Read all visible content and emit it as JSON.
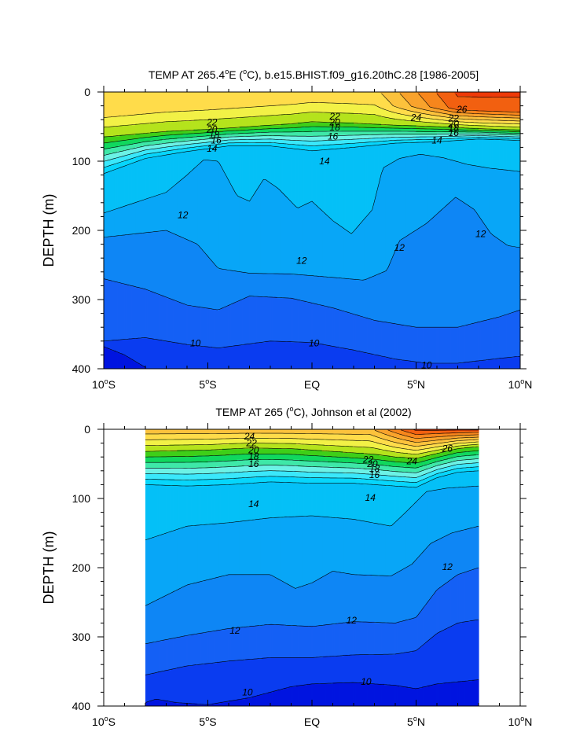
{
  "chart_data": [
    {
      "type": "contour",
      "title": "TEMP AT 265.4°E (°C), b.e15.BHIST.f09_g16.20thC.28 [1986-2005]",
      "title_main": "TEMP AT 265.4",
      "title_sup": "o",
      "title_rest": "E (",
      "title_sup2": "o",
      "title_end": "C), b.e15.BHIST.f09_g16.20thC.28 [1986-2005]",
      "ylabel": "DEPTH (m)",
      "xlim": [
        -10,
        10
      ],
      "ylim": [
        0,
        400
      ],
      "y_inverted": true,
      "data_xrange": [
        -10,
        10
      ],
      "x_ticks": [
        {
          "value": -10,
          "num": "10",
          "sup": "o",
          "hemi": "S"
        },
        {
          "value": -5,
          "num": "5",
          "sup": "o",
          "hemi": "S"
        },
        {
          "value": 0,
          "num": "EQ",
          "sup": "",
          "hemi": ""
        },
        {
          "value": 5,
          "num": "5",
          "sup": "o",
          "hemi": "N"
        },
        {
          "value": 10,
          "num": "10",
          "sup": "o",
          "hemi": "N"
        }
      ],
      "y_ticks": [
        0,
        100,
        200,
        300,
        400
      ],
      "contour_labels": [
        {
          "text": "22",
          "x": -4.8,
          "y": 44
        },
        {
          "text": "20",
          "x": -4.8,
          "y": 54
        },
        {
          "text": "18",
          "x": -4.7,
          "y": 62
        },
        {
          "text": "16",
          "x": -4.6,
          "y": 70
        },
        {
          "text": "14",
          "x": -4.8,
          "y": 82
        },
        {
          "text": "22",
          "x": 1.1,
          "y": 35
        },
        {
          "text": "20",
          "x": 1.1,
          "y": 44
        },
        {
          "text": "18",
          "x": 1.1,
          "y": 51
        },
        {
          "text": "16",
          "x": 1.0,
          "y": 64
        },
        {
          "text": "14",
          "x": 0.6,
          "y": 100
        },
        {
          "text": "24",
          "x": 5.0,
          "y": 37
        },
        {
          "text": "26",
          "x": 7.2,
          "y": 25
        },
        {
          "text": "22",
          "x": 6.8,
          "y": 38
        },
        {
          "text": "20",
          "x": 6.8,
          "y": 46
        },
        {
          "text": "18",
          "x": 6.8,
          "y": 52
        },
        {
          "text": "16",
          "x": 6.8,
          "y": 59
        },
        {
          "text": "14",
          "x": 6.0,
          "y": 70
        },
        {
          "text": "12",
          "x": -6.2,
          "y": 178
        },
        {
          "text": "12",
          "x": -0.5,
          "y": 244
        },
        {
          "text": "12",
          "x": 4.2,
          "y": 225
        },
        {
          "text": "12",
          "x": 8.1,
          "y": 205
        },
        {
          "text": "10",
          "x": -5.6,
          "y": 363
        },
        {
          "text": "10",
          "x": 0.1,
          "y": 363
        },
        {
          "text": "10",
          "x": 5.5,
          "y": 395
        }
      ]
    },
    {
      "type": "contour",
      "title": "TEMP AT 265 (°C), Johnson et al (2002)",
      "title_main": "TEMP AT 265 (",
      "title_sup": "o",
      "title_end": "C), Johnson et al (2002)",
      "ylabel": "DEPTH (m)",
      "xlim": [
        -10,
        10
      ],
      "ylim": [
        0,
        400
      ],
      "y_inverted": true,
      "data_xrange": [
        -8,
        8
      ],
      "x_ticks": [
        {
          "value": -10,
          "num": "10",
          "sup": "o",
          "hemi": "S"
        },
        {
          "value": -5,
          "num": "5",
          "sup": "o",
          "hemi": "S"
        },
        {
          "value": 0,
          "num": "EQ",
          "sup": "",
          "hemi": ""
        },
        {
          "value": 5,
          "num": "5",
          "sup": "o",
          "hemi": "N"
        },
        {
          "value": 10,
          "num": "10",
          "sup": "o",
          "hemi": "N"
        }
      ],
      "y_ticks": [
        0,
        100,
        200,
        300,
        400
      ],
      "contour_labels": [
        {
          "text": "24",
          "x": -3.0,
          "y": 10
        },
        {
          "text": "22",
          "x": -2.9,
          "y": 20
        },
        {
          "text": "20",
          "x": -2.8,
          "y": 30
        },
        {
          "text": "18",
          "x": -2.8,
          "y": 39
        },
        {
          "text": "16",
          "x": -2.8,
          "y": 50
        },
        {
          "text": "14",
          "x": -2.8,
          "y": 108
        },
        {
          "text": "22",
          "x": 2.7,
          "y": 44
        },
        {
          "text": "20",
          "x": 2.9,
          "y": 50
        },
        {
          "text": "18",
          "x": 3.0,
          "y": 57
        },
        {
          "text": "16",
          "x": 3.0,
          "y": 66
        },
        {
          "text": "24",
          "x": 4.8,
          "y": 46
        },
        {
          "text": "26",
          "x": 6.5,
          "y": 28
        },
        {
          "text": "14",
          "x": 2.8,
          "y": 99
        },
        {
          "text": "12",
          "x": 6.5,
          "y": 199
        },
        {
          "text": "12",
          "x": 1.9,
          "y": 276
        },
        {
          "text": "12",
          "x": -3.7,
          "y": 291
        },
        {
          "text": "10",
          "x": 2.6,
          "y": 365
        },
        {
          "text": "10",
          "x": -3.1,
          "y": 380
        }
      ]
    }
  ],
  "colors": {
    "ramp": [
      "#0015e0",
      "#0a3cf0",
      "#1560f5",
      "#0e86f5",
      "#08a6f7",
      "#05c0f7",
      "#07d6fc",
      "#3ae8fb",
      "#6cf2e6",
      "#3fe8a8",
      "#10d85e",
      "#3fcf18",
      "#b5e31c",
      "#f2f146",
      "#ffdc4a",
      "#fcc23c",
      "#f9a32c",
      "#f7861d",
      "#f26010",
      "#ee3a08"
    ],
    "levels": [
      9,
      10,
      11,
      12,
      13,
      14,
      15,
      16,
      17,
      18,
      19,
      20,
      21,
      22,
      23,
      24,
      25,
      26,
      27
    ]
  }
}
